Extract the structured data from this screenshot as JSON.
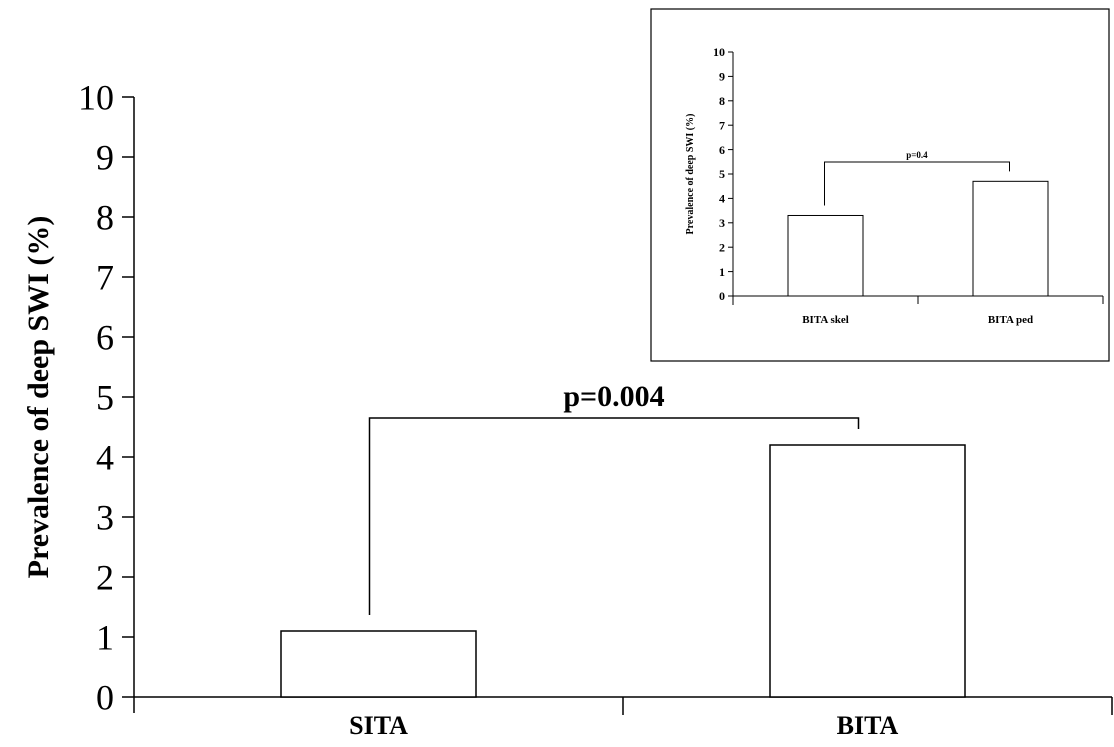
{
  "chart_data": [
    {
      "type": "bar",
      "categories": [
        "SITA",
        "BITA"
      ],
      "values": [
        1.1,
        4.2
      ],
      "ylabel": "Prevalence of deep SWI (%)",
      "xlabel": "",
      "ylim": [
        0,
        10
      ],
      "yticks": [
        "0",
        "1",
        "2",
        "3",
        "4",
        "5",
        "6",
        "7",
        "8",
        "9",
        "10"
      ],
      "annotation": "p=0.004",
      "grid": false,
      "bar_color": "#ffffff",
      "edge_color": "#000000"
    },
    {
      "type": "bar",
      "categories": [
        "BITA skel",
        "BITA ped"
      ],
      "values": [
        3.3,
        4.7
      ],
      "ylabel": "Prevalence of deep SWI (%)",
      "xlabel": "",
      "ylim": [
        0,
        10
      ],
      "yticks": [
        "0",
        "1",
        "2",
        "3",
        "4",
        "5",
        "6",
        "7",
        "8",
        "9",
        "10"
      ],
      "annotation": "p=0.4",
      "grid": false,
      "bar_color": "#ffffff",
      "edge_color": "#000000",
      "placement": "inset top-right"
    }
  ]
}
